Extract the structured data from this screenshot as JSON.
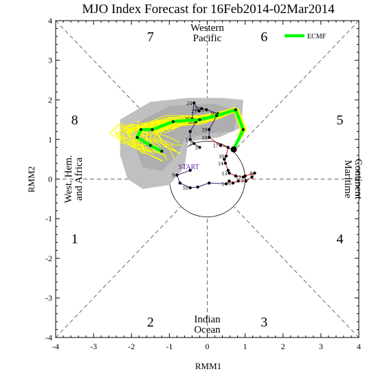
{
  "chart_data": {
    "type": "line",
    "title": "MJO Index Forecast for 16Feb2014-02Mar2014",
    "xlabel": "RMM1",
    "ylabel": "RMM2",
    "xlim": [
      -4,
      4
    ],
    "ylim": [
      -4,
      4
    ],
    "xticks": [
      -4,
      -3,
      -2,
      -1,
      0,
      1,
      2,
      3,
      4
    ],
    "yticks": [
      -4,
      -3,
      -2,
      -1,
      0,
      1,
      2,
      3,
      4
    ],
    "phases": [
      {
        "label": "1",
        "x": -3.5,
        "y": -1.5
      },
      {
        "label": "2",
        "x": -1.5,
        "y": -3.6
      },
      {
        "label": "3",
        "x": 1.5,
        "y": -3.6
      },
      {
        "label": "4",
        "x": 3.5,
        "y": -1.5
      },
      {
        "label": "5",
        "x": 3.5,
        "y": 1.5
      },
      {
        "label": "6",
        "x": 1.5,
        "y": 3.6
      },
      {
        "label": "7",
        "x": -1.5,
        "y": 3.6
      },
      {
        "label": "8",
        "x": -3.5,
        "y": 1.5
      }
    ],
    "regions": {
      "top": [
        "Western",
        "Pacific"
      ],
      "bottom": [
        "Indian",
        "Ocean"
      ],
      "left": [
        "West. Hem.",
        "and Africa"
      ],
      "right": [
        "Maritime",
        "Continent"
      ]
    },
    "start_label": "START",
    "observed_colors": {
      "early": "#3a1a7a",
      "late": "#cc1111"
    },
    "observed": [
      {
        "day": "",
        "x": -0.45,
        "y": 0.22
      },
      {
        "day": "9",
        "x": -0.8,
        "y": 0.1
      },
      {
        "day": "",
        "x": -0.72,
        "y": -0.1
      },
      {
        "day": "10",
        "x": -0.45,
        "y": -0.22
      },
      {
        "day": "",
        "x": -0.25,
        "y": -0.2
      },
      {
        "day": "",
        "x": 0.05,
        "y": -0.1
      },
      {
        "day": "5",
        "x": 0.5,
        "y": -0.12
      },
      {
        "day": "",
        "x": 0.58,
        "y": -0.05
      },
      {
        "day": "6",
        "x": 0.68,
        "y": -0.1
      },
      {
        "day": "",
        "x": 0.82,
        "y": -0.05
      },
      {
        "day": "7",
        "x": 1.02,
        "y": -0.05
      },
      {
        "day": "",
        "x": 1.18,
        "y": 0.05
      },
      {
        "day": "8",
        "x": 1.25,
        "y": 0.15
      },
      {
        "day": "",
        "x": 1.0,
        "y": 0.08
      },
      {
        "day": "12",
        "x": 0.95,
        "y": 0.05
      },
      {
        "day": "",
        "x": 0.75,
        "y": 0.08
      },
      {
        "day": "13",
        "x": 0.58,
        "y": 0.15
      },
      {
        "day": "",
        "x": 0.55,
        "y": 0.22
      },
      {
        "day": "14",
        "x": 0.48,
        "y": 0.4
      },
      {
        "day": "",
        "x": 0.45,
        "y": 0.5
      },
      {
        "day": "16",
        "x": 0.5,
        "y": 0.58
      },
      {
        "day": "",
        "x": 0.55,
        "y": 0.8
      },
      {
        "day": "17",
        "x": 0.35,
        "y": 0.85
      },
      {
        "day": "18",
        "x": 0.05,
        "y": 1.05
      },
      {
        "day": "19",
        "x": 0.05,
        "y": 1.25
      },
      {
        "day": "20",
        "x": 0.28,
        "y": 1.65
      },
      {
        "day": "21",
        "x": -0.02,
        "y": 1.75
      },
      {
        "day": "22",
        "x": -0.15,
        "y": 1.78
      },
      {
        "day": "23",
        "x": -0.22,
        "y": 1.72
      },
      {
        "day": "24",
        "x": -0.35,
        "y": 1.92
      },
      {
        "day": "25",
        "x": -0.4,
        "y": 1.52
      },
      {
        "day": "26",
        "x": -0.3,
        "y": 1.45
      },
      {
        "day": "",
        "x": -0.45,
        "y": 1.2
      },
      {
        "day": "1",
        "x": -0.45,
        "y": 1.0
      },
      {
        "day": "2",
        "x": -0.35,
        "y": 0.9
      },
      {
        "day": "3",
        "x": -0.2,
        "y": 0.8
      }
    ],
    "series": [
      {
        "name": "ECMF",
        "color": "#00ff00",
        "x": [
          0.7,
          0.95,
          0.75,
          0.25,
          -0.2,
          -0.9,
          -1.45,
          -1.75,
          -1.85,
          -1.5,
          -1.2
        ],
        "y": [
          0.75,
          1.25,
          1.75,
          1.6,
          1.5,
          1.45,
          1.25,
          1.25,
          1.05,
          0.85,
          0.7
        ]
      }
    ],
    "ensemble_color": "#ffff00",
    "spread_color": "#c0c0c0",
    "spread_polygon": [
      [
        -2.3,
        1.5
      ],
      [
        -1.5,
        1.95
      ],
      [
        -0.5,
        2.05
      ],
      [
        0.4,
        2.05
      ],
      [
        0.95,
        2.0
      ],
      [
        0.9,
        1.3
      ],
      [
        0.3,
        1.05
      ],
      [
        -0.5,
        0.95
      ],
      [
        -0.6,
        0.3
      ],
      [
        -1.0,
        -0.15
      ],
      [
        -1.7,
        -0.25
      ],
      [
        -2.1,
        0.0
      ],
      [
        -2.3,
        0.6
      ]
    ],
    "spread_inner_polygon": [
      [
        -1.9,
        1.4
      ],
      [
        -1.0,
        1.85
      ],
      [
        0.2,
        1.9
      ],
      [
        0.8,
        1.7
      ],
      [
        0.7,
        1.2
      ],
      [
        0.0,
        1.15
      ],
      [
        -0.6,
        1.0
      ],
      [
        -0.8,
        0.6
      ],
      [
        -1.2,
        0.2
      ],
      [
        -1.7,
        0.3
      ],
      [
        -1.9,
        0.8
      ]
    ],
    "current_point": {
      "x": 0.7,
      "y": 0.75
    }
  }
}
